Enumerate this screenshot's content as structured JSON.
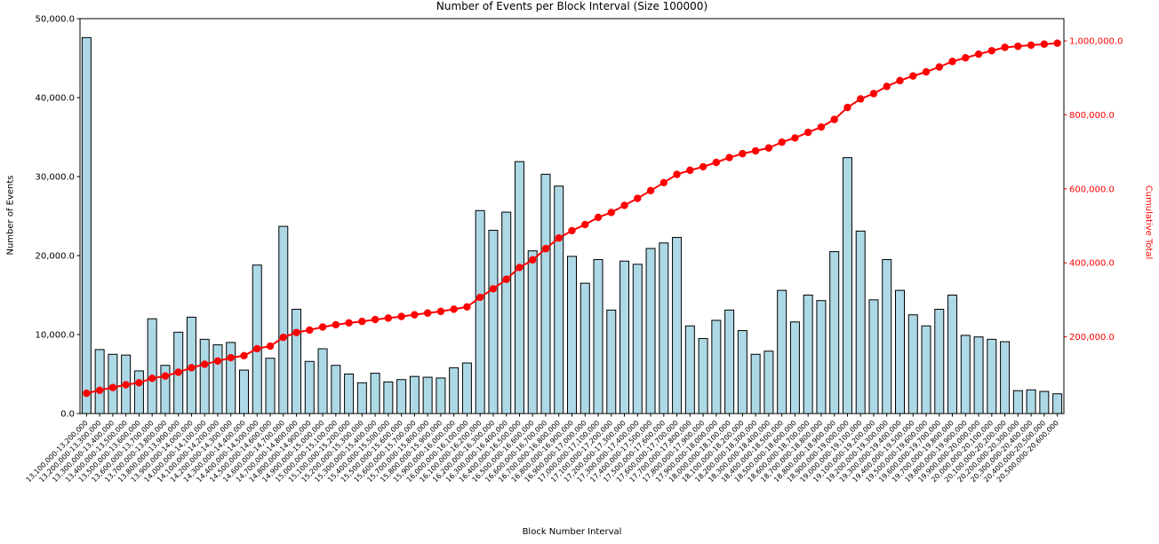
{
  "figure": {
    "background": "#ffffff"
  },
  "chart_data": {
    "type": "bar",
    "title": "Number of Events per Block Interval (Size 100000)",
    "xlabel": "Block Number Interval",
    "ylabel": "Number of Events",
    "ylabel_right": "Cumulative Total",
    "grid": false,
    "legend": "none",
    "categories": [
      "13,100,000-13,200,000",
      "13,200,000-13,300,000",
      "13,300,000-13,400,000",
      "13,400,000-13,500,000",
      "13,500,000-13,600,000",
      "13,600,000-13,700,000",
      "13,700,000-13,800,000",
      "13,800,000-13,900,000",
      "13,900,000-14,000,000",
      "14,000,000-14,100,000",
      "14,100,000-14,200,000",
      "14,200,000-14,300,000",
      "14,300,000-14,400,000",
      "14,400,000-14,500,000",
      "14,500,000-14,600,000",
      "14,600,000-14,700,000",
      "14,700,000-14,800,000",
      "14,800,000-14,900,000",
      "14,900,000-15,000,000",
      "15,000,000-15,100,000",
      "15,100,000-15,200,000",
      "15,200,000-15,300,000",
      "15,300,000-15,400,000",
      "15,400,000-15,500,000",
      "15,500,000-15,600,000",
      "15,600,000-15,700,000",
      "15,700,000-15,800,000",
      "15,800,000-15,900,000",
      "15,900,000-16,000,000",
      "16,000,000-16,100,000",
      "16,100,000-16,200,000",
      "16,200,000-16,300,000",
      "16,300,000-16,400,000",
      "16,400,000-16,500,000",
      "16,500,000-16,600,000",
      "16,600,000-16,700,000",
      "16,700,000-16,800,000",
      "16,800,000-16,900,000",
      "16,900,000-17,000,000",
      "17,000,000-17,100,000",
      "17,100,000-17,200,000",
      "17,200,000-17,300,000",
      "17,300,000-17,400,000",
      "17,400,000-17,500,000",
      "17,500,000-17,600,000",
      "17,600,000-17,700,000",
      "17,700,000-17,800,000",
      "17,800,000-17,900,000",
      "17,900,000-18,000,000",
      "18,000,000-18,100,000",
      "18,100,000-18,200,000",
      "18,200,000-18,300,000",
      "18,300,000-18,400,000",
      "18,400,000-18,500,000",
      "18,500,000-18,600,000",
      "18,600,000-18,700,000",
      "18,700,000-18,800,000",
      "18,800,000-18,900,000",
      "18,900,000-19,000,000",
      "19,000,000-19,100,000",
      "19,100,000-19,200,000",
      "19,200,000-19,300,000",
      "19,300,000-19,400,000",
      "19,400,000-19,500,000",
      "19,500,000-19,600,000",
      "19,600,000-19,700,000",
      "19,700,000-19,800,000",
      "19,800,000-19,900,000",
      "19,900,000-20,000,000",
      "20,000,000-20,100,000",
      "20,100,000-20,200,000",
      "20,200,000-20,300,000",
      "20,300,000-20,400,000",
      "20,400,000-20,500,000",
      "20,500,000-20,600,000"
    ],
    "series": [
      {
        "name": "Number of Events",
        "type": "bar",
        "axis": "left",
        "values": [
          47600,
          8100,
          7500,
          7400,
          5400,
          12000,
          6100,
          10300,
          12200,
          9400,
          8700,
          9000,
          5500,
          18800,
          7000,
          23700,
          13200,
          6600,
          8200,
          6100,
          5000,
          3900,
          5100,
          4000,
          4300,
          4700,
          4600,
          4500,
          5800,
          6400,
          25700,
          23200,
          25500,
          31900,
          20600,
          30300,
          28800,
          19900,
          16500,
          19500,
          13100,
          19300,
          18900,
          20900,
          21600,
          22300,
          11100,
          9500,
          11800,
          13100,
          10500,
          7500,
          7900,
          15600,
          11600,
          15000,
          14300,
          20500,
          32400,
          23100,
          14400,
          19500,
          15600,
          12500,
          11100,
          13200,
          15000,
          9900,
          9700,
          9400,
          9100,
          2900,
          3000,
          2800,
          2500
        ]
      },
      {
        "name": "Cumulative Total",
        "type": "line",
        "axis": "right",
        "marker": "circle",
        "derivation": "cumulative_sum_of_bar_values"
      }
    ],
    "left_axis": {
      "min": 0,
      "max": 50000,
      "ticks": [
        0,
        10000,
        20000,
        30000,
        40000,
        50000
      ],
      "tick_labels": [
        "0.0",
        "10,000.0",
        "20,000.0",
        "30,000.0",
        "40,000.0",
        "50,000.0"
      ]
    },
    "right_axis": {
      "min": -7200,
      "max": 1060000,
      "ticks": [
        200000,
        400000,
        600000,
        800000,
        1000000
      ],
      "tick_labels": [
        "200,000.0",
        "400,000.0",
        "600,000.0",
        "800,000.0",
        "1,000,000.0"
      ],
      "color": "#ff0000"
    },
    "colors": {
      "bar_fill": "#add8e6",
      "bar_edge": "#000000",
      "line": "#ff0000",
      "axis": "#000000"
    }
  }
}
